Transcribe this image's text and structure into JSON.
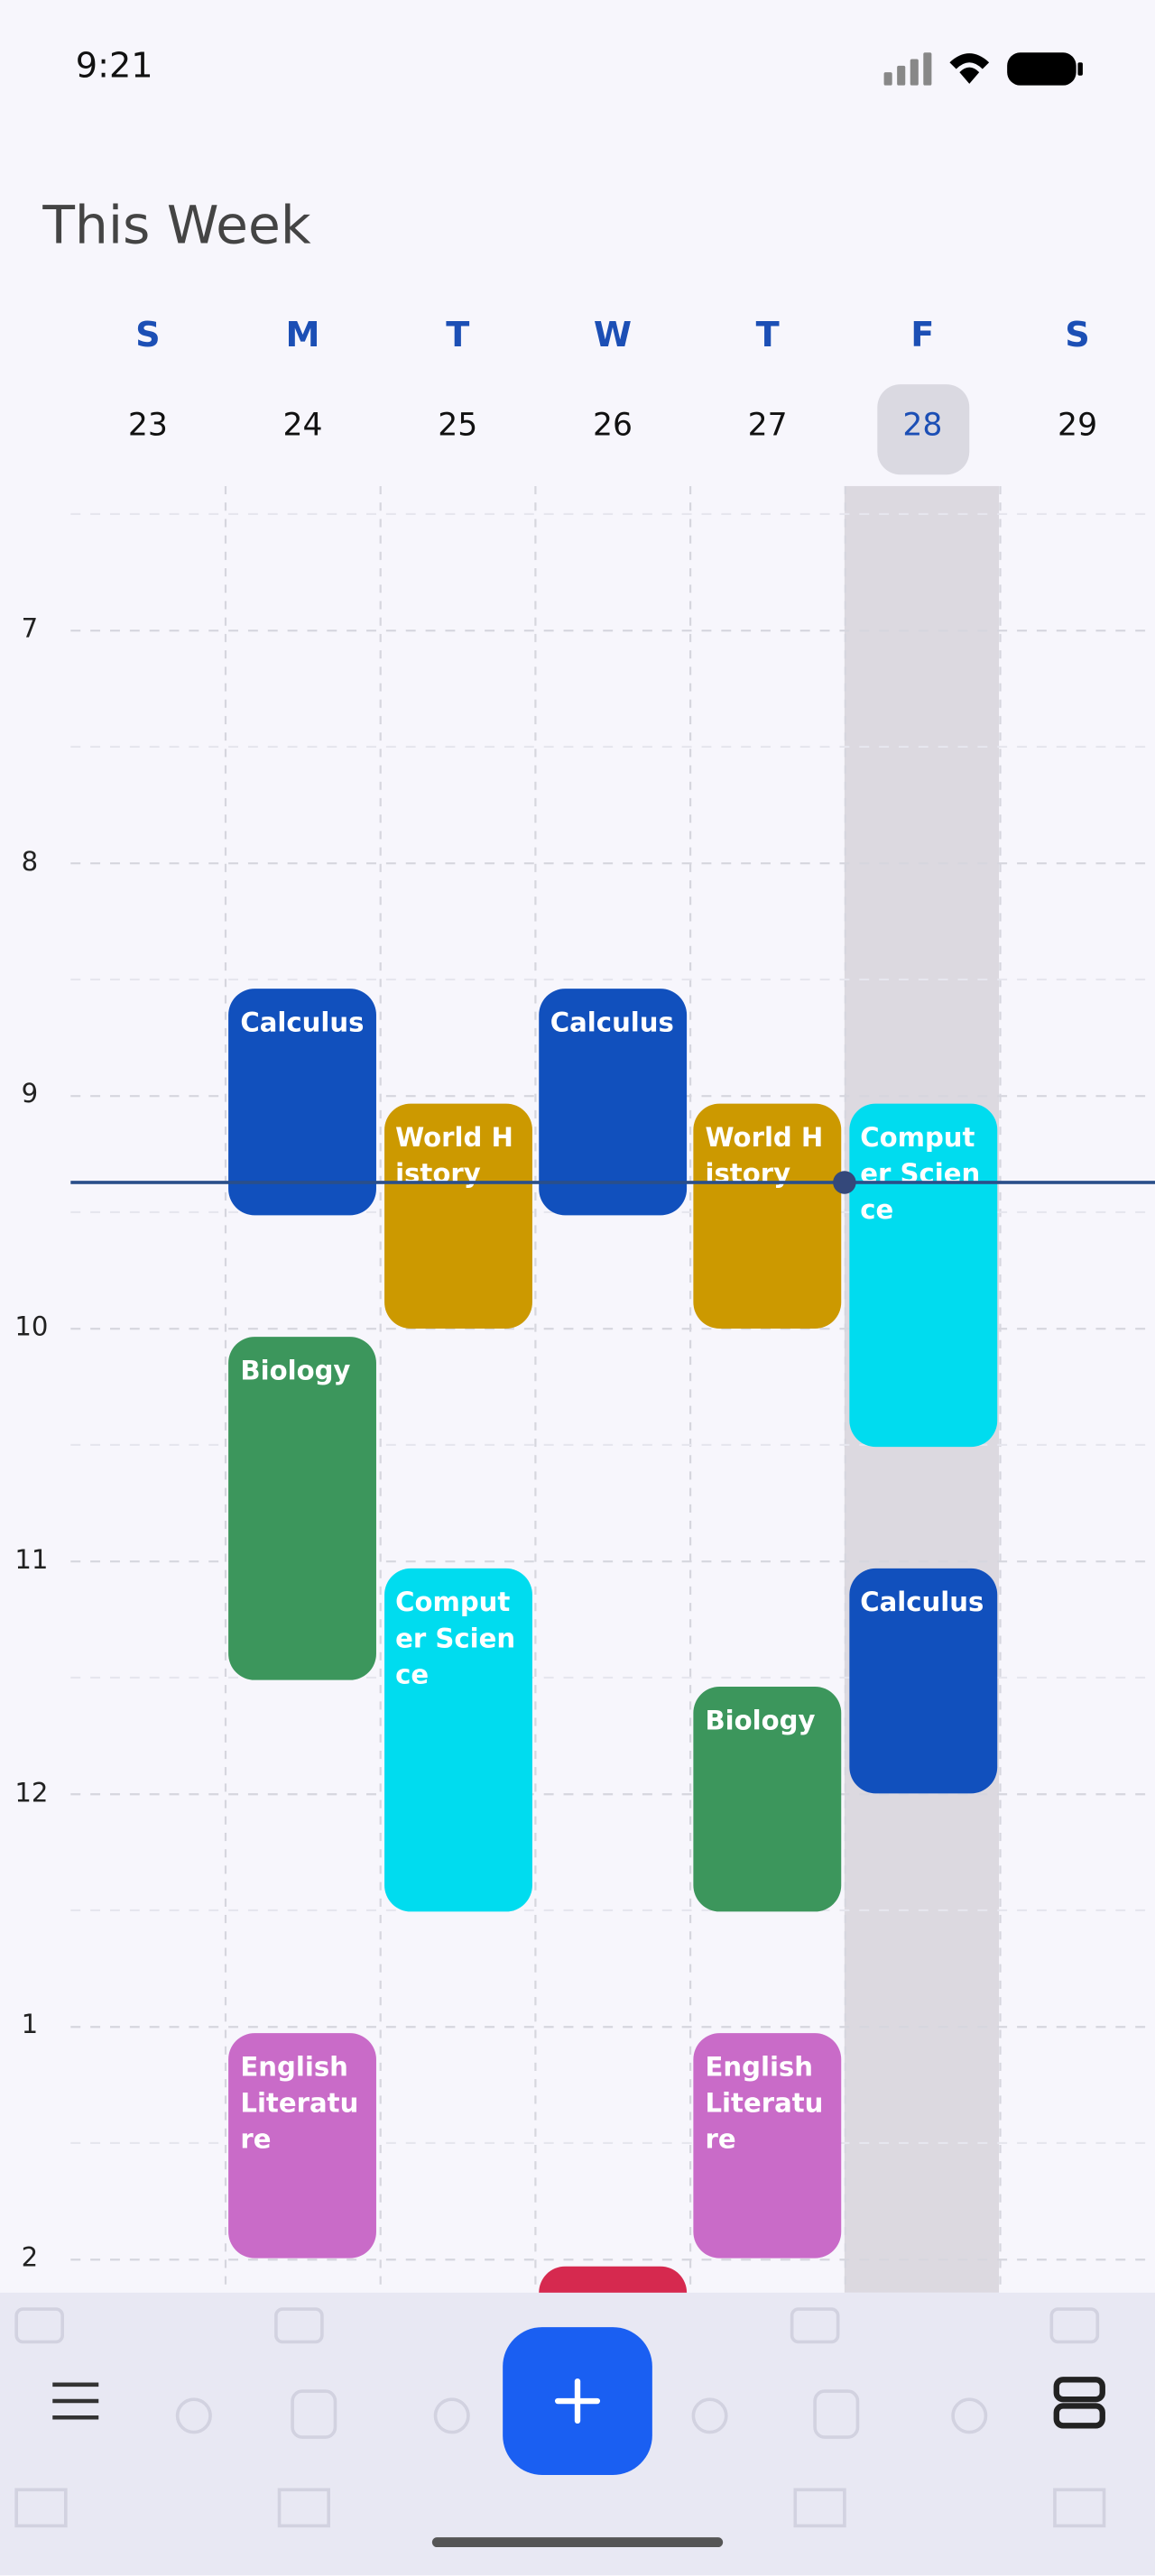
{
  "status_bar": {
    "time": "9:21"
  },
  "header": {
    "title": "This Week"
  },
  "week": {
    "days": [
      {
        "letter": "S",
        "date": "23"
      },
      {
        "letter": "M",
        "date": "24"
      },
      {
        "letter": "T",
        "date": "25"
      },
      {
        "letter": "W",
        "date": "26"
      },
      {
        "letter": "T",
        "date": "27"
      },
      {
        "letter": "F",
        "date": "28"
      },
      {
        "letter": "S",
        "date": "29"
      }
    ]
  },
  "hours": [
    "7",
    "8",
    "9",
    "10",
    "11",
    "12",
    "1",
    "2"
  ],
  "events": [
    {
      "label": "Calculus"
    },
    {
      "label": "World History"
    },
    {
      "label": "Calculus"
    },
    {
      "label": "World History"
    },
    {
      "label": "Computer Science"
    },
    {
      "label": "Biology"
    },
    {
      "label": "Computer Science"
    },
    {
      "label": "Calculus"
    },
    {
      "label": "Biology"
    },
    {
      "label": "English Literature"
    },
    {
      "label": "English Literature"
    }
  ]
}
